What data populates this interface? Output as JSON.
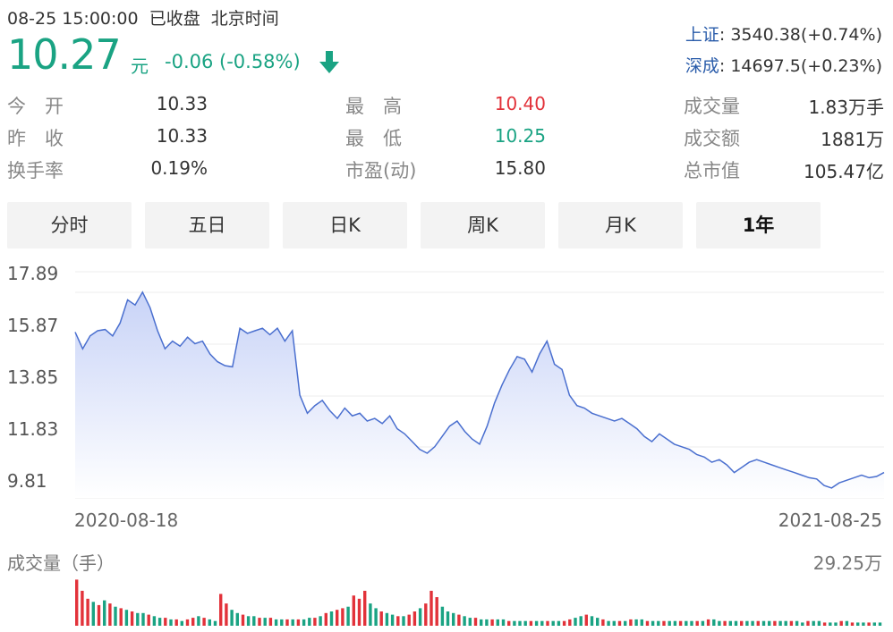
{
  "status": {
    "datetime": "08-25 15:00:00",
    "state": "已收盘",
    "timezone": "北京时间"
  },
  "quote": {
    "price": "10.27",
    "unit": "元",
    "change": "-0.06 (-0.58%)",
    "direction": "down",
    "color": "#1aa383"
  },
  "indices": [
    {
      "name": "上证",
      "value": ": 3540.38(+0.74%)"
    },
    {
      "name": "深成",
      "value": ": 14697.5(+0.23%)"
    }
  ],
  "stats": {
    "open_label": "今　开",
    "open": "10.33",
    "prev_label": "昨　收",
    "prev": "10.33",
    "turnover_label": "换手率",
    "turnover": "0.19%",
    "high_label": "最　高",
    "high": "10.40",
    "high_color": "#e2323a",
    "low_label": "最　低",
    "low": "10.25",
    "low_color": "#1aa383",
    "pe_label": "市盈(动)",
    "pe": "15.80",
    "volume_label": "成交量",
    "volume": "1.83万手",
    "amount_label": "成交额",
    "amount": "1881万",
    "mcap_label": "总市值",
    "mcap": "105.47亿"
  },
  "tabs": [
    "分时",
    "五日",
    "日K",
    "周K",
    "月K",
    "1年"
  ],
  "active_tab": "1年",
  "chart_data": {
    "type": "area",
    "yticks": [
      "17.89",
      "15.87",
      "13.85",
      "11.83",
      "9.81"
    ],
    "ylim": [
      9.81,
      17.89
    ],
    "x_start": "2020-08-18",
    "x_end": "2021-08-25",
    "line_color": "#4a6fcf",
    "fill_color": "#dfe6fb",
    "values": [
      15.55,
      14.9,
      15.4,
      15.6,
      15.65,
      15.4,
      15.9,
      16.8,
      16.6,
      17.1,
      16.5,
      15.6,
      14.9,
      15.2,
      15.0,
      15.35,
      15.1,
      15.2,
      14.7,
      14.4,
      14.25,
      14.2,
      15.7,
      15.5,
      15.6,
      15.7,
      15.45,
      15.7,
      15.2,
      15.6,
      13.1,
      12.4,
      12.7,
      12.9,
      12.5,
      12.2,
      12.6,
      12.3,
      12.4,
      12.1,
      12.2,
      12.0,
      12.3,
      11.8,
      11.6,
      11.3,
      11.0,
      10.85,
      11.1,
      11.5,
      11.9,
      12.1,
      11.7,
      11.4,
      11.2,
      11.9,
      12.8,
      13.5,
      14.1,
      14.6,
      14.5,
      14.0,
      14.7,
      15.2,
      14.3,
      14.1,
      13.1,
      12.7,
      12.6,
      12.4,
      12.3,
      12.2,
      12.1,
      12.2,
      12.0,
      11.8,
      11.5,
      11.3,
      11.6,
      11.4,
      11.2,
      11.1,
      11.0,
      10.8,
      10.7,
      10.5,
      10.6,
      10.4,
      10.1,
      10.3,
      10.5,
      10.6,
      10.5,
      10.4,
      10.3,
      10.2,
      10.1,
      10.0,
      9.9,
      9.85,
      9.6,
      9.5,
      9.7,
      9.8,
      9.9,
      10.0,
      9.9,
      9.95,
      10.1
    ],
    "volume": {
      "title": "成交量（手）",
      "max_label": "29.25万",
      "max": 29.25,
      "up_color": "#e2323a",
      "down_color": "#1aa383",
      "values": [
        29,
        22,
        17,
        15,
        13,
        16,
        14,
        12,
        11,
        10,
        9,
        8,
        8,
        7,
        6,
        5,
        5,
        4,
        4,
        3,
        4,
        5,
        6,
        5,
        4,
        3,
        20,
        14,
        10,
        8,
        7,
        6,
        6,
        5,
        5,
        5,
        4,
        4,
        4,
        4,
        4,
        4,
        5,
        5,
        6,
        8,
        9,
        10,
        11,
        12,
        19,
        17,
        22,
        14,
        11,
        9,
        8,
        7,
        6,
        6,
        7,
        9,
        11,
        14,
        22,
        18,
        12,
        9,
        8,
        7,
        6,
        5,
        5,
        4,
        4,
        4,
        4,
        4,
        3,
        3,
        3,
        3,
        3,
        3,
        3,
        3,
        3,
        3,
        3,
        4,
        5,
        6,
        7,
        6,
        5,
        4,
        3,
        3,
        3,
        3,
        4,
        4,
        4,
        3,
        3,
        3,
        3,
        3,
        3,
        3,
        3,
        3,
        3,
        3,
        4,
        4,
        3,
        3,
        3,
        3,
        3,
        3,
        3,
        3,
        3,
        3,
        3,
        3,
        3,
        3,
        3,
        2,
        3,
        3,
        3,
        2,
        2,
        2,
        3,
        3,
        2,
        2,
        2,
        2,
        2,
        2
      ],
      "up_flags": [
        1,
        1,
        1,
        0,
        1,
        0,
        1,
        0,
        1,
        0,
        1,
        0,
        0,
        1,
        0,
        0,
        1,
        0,
        1,
        0,
        1,
        1,
        0,
        1,
        0,
        0,
        1,
        1,
        0,
        0,
        1,
        0,
        0,
        1,
        0,
        1,
        0,
        0,
        1,
        0,
        1,
        0,
        0,
        1,
        0,
        1,
        0,
        1,
        1,
        0,
        1,
        1,
        1,
        0,
        0,
        1,
        0,
        0,
        1,
        0,
        1,
        1,
        0,
        1,
        1,
        1,
        0,
        0,
        0,
        1,
        0,
        0,
        1,
        0,
        0,
        1,
        0,
        0,
        1,
        0,
        0,
        0,
        1,
        0,
        0,
        1,
        0,
        0,
        1,
        1,
        0,
        0,
        1,
        0,
        0,
        1,
        0,
        0,
        1,
        0,
        1,
        0,
        0,
        1,
        0,
        0,
        1,
        0,
        0,
        1,
        0,
        0,
        1,
        0,
        1,
        0,
        0,
        1,
        0,
        0,
        1,
        0,
        0,
        1,
        0,
        0,
        1,
        0,
        0,
        1,
        0,
        0,
        1,
        0,
        0,
        1,
        0,
        0,
        1,
        0,
        1,
        0,
        0,
        1,
        0,
        0
      ]
    }
  }
}
